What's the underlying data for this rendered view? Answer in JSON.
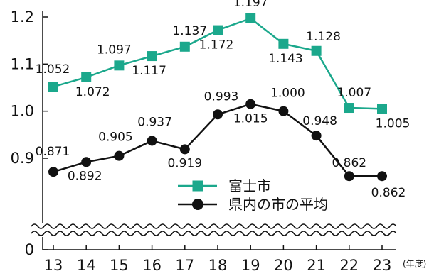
{
  "chart_data": {
    "type": "line",
    "x": [
      "13",
      "14",
      "15",
      "16",
      "17",
      "18",
      "19",
      "20",
      "21",
      "22",
      "23"
    ],
    "x_unit": "(年度)",
    "y_ticks": [
      "0",
      "0.9",
      "1.0",
      "1.1",
      "1.2"
    ],
    "ylim": [
      0.8,
      1.2
    ],
    "axis_break": true,
    "grid": false,
    "legend_position": "bottom-center",
    "series": [
      {
        "name": "富士市",
        "color": "#1ba88c",
        "marker": "square",
        "values": [
          1.052,
          1.072,
          1.097,
          1.117,
          1.137,
          1.172,
          1.197,
          1.143,
          1.128,
          1.007,
          1.005
        ],
        "labels": [
          "1.052",
          "1.072",
          "1.097",
          "1.117",
          "1.137",
          "1.172",
          "1.197",
          "1.143",
          "1.128",
          "1.007",
          "1.005"
        ]
      },
      {
        "name": "県内の市の平均",
        "color": "#111111",
        "marker": "circle",
        "values": [
          0.871,
          0.892,
          0.905,
          0.937,
          0.919,
          0.993,
          1.015,
          1.0,
          0.948,
          0.862,
          0.862
        ],
        "labels": [
          "0.871",
          "0.892",
          "0.905",
          "0.937",
          "0.919",
          "0.993",
          "1.015",
          "1.000",
          "0.948",
          "0.862",
          "0.862"
        ]
      }
    ]
  }
}
